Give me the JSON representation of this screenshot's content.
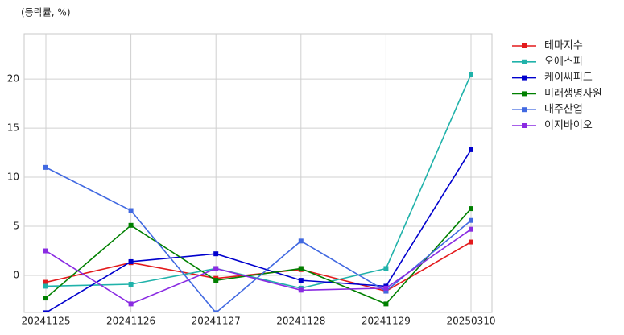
{
  "chart_data": {
    "type": "line",
    "y_label": "(등락률, %)",
    "categories": [
      "20241125",
      "20241126",
      "20241127",
      "20241128",
      "20241129",
      "20250310"
    ],
    "ylim": [
      -3.77,
      24.6
    ],
    "yticks": [
      0,
      5,
      10,
      15,
      20
    ],
    "grid": true,
    "legend": "outside-right",
    "series": [
      {
        "name": "테마지수",
        "color": "#e31a1c",
        "values": [
          -0.7,
          1.3,
          -0.3,
          0.6,
          -1.6,
          3.4
        ]
      },
      {
        "name": "오에스피",
        "color": "#20b2aa",
        "values": [
          -1.1,
          -0.9,
          0.7,
          -1.3,
          0.7,
          20.5
        ]
      },
      {
        "name": "케이씨피드",
        "color": "#0000cd",
        "values": [
          -3.8,
          1.4,
          2.2,
          -0.5,
          -1.1,
          12.8
        ]
      },
      {
        "name": "미래생명자원",
        "color": "#008000",
        "values": [
          -2.3,
          5.1,
          -0.5,
          0.7,
          -2.9,
          6.8
        ]
      },
      {
        "name": "대주산업",
        "color": "#4169e1",
        "values": [
          11.0,
          6.6,
          -3.8,
          3.5,
          -1.6,
          5.6
        ]
      },
      {
        "name": "이지바이오",
        "color": "#8a2be2",
        "values": [
          2.5,
          -2.9,
          0.7,
          -1.5,
          -1.3,
          4.7
        ]
      }
    ]
  }
}
